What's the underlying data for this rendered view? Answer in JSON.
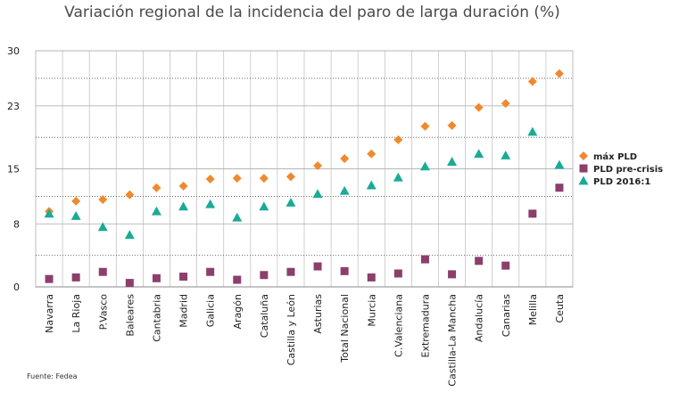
{
  "chart_data": {
    "type": "scatter",
    "title": "Variación regional de la incidencia del paro de larga duración (%)",
    "source": "Fuente: Fedea",
    "xlabel": "",
    "ylabel": "",
    "ylim": [
      0,
      30
    ],
    "yticks": [
      0,
      8,
      15,
      23,
      30
    ],
    "grid": true,
    "legend_position": "right",
    "categories": [
      "Navarra",
      "La Rioja",
      "P.Vasco",
      "Baleares",
      "Cantabria",
      "Madrid",
      "Galicia",
      "Aragón",
      "Cataluña",
      "Castilla y León",
      "Asturias",
      "Total Nacional",
      "Murcia",
      "C.Valenciana",
      "Extremadura",
      "Castilla-La Mancha",
      "Andalucía",
      "Canarias",
      "Melilla",
      "Ceuta"
    ],
    "series": [
      {
        "name": "máx PLD",
        "color": "#f0892e",
        "marker": "diamond",
        "values": [
          9.6,
          10.9,
          11.1,
          11.7,
          12.6,
          12.8,
          13.7,
          13.8,
          13.8,
          14.0,
          15.4,
          16.3,
          16.9,
          18.7,
          20.4,
          20.5,
          22.8,
          23.3,
          26.1,
          27.1
        ]
      },
      {
        "name": "PLD pre-crisis",
        "color": "#8c3f6b",
        "marker": "square",
        "values": [
          1.0,
          1.2,
          1.9,
          0.5,
          1.1,
          1.3,
          1.9,
          0.9,
          1.5,
          1.9,
          2.6,
          2.0,
          1.2,
          1.7,
          3.5,
          1.6,
          3.3,
          2.7,
          9.3,
          12.6
        ]
      },
      {
        "name": "PLD 2016:1",
        "color": "#1aab96",
        "marker": "triangle",
        "values": [
          9.3,
          9.0,
          7.6,
          6.6,
          9.6,
          10.2,
          10.5,
          8.8,
          10.2,
          10.7,
          11.8,
          12.2,
          12.9,
          13.9,
          15.3,
          15.9,
          16.9,
          16.7,
          19.7,
          15.5
        ]
      }
    ]
  }
}
